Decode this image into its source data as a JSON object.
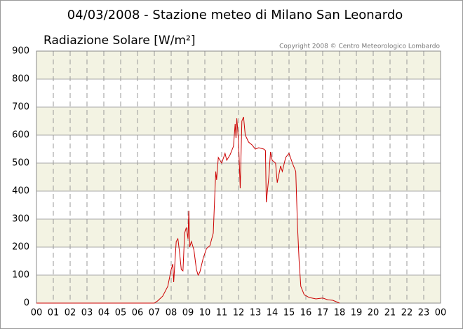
{
  "chart_data": {
    "type": "line",
    "title": "04/03/2008 - Stazione meteo di Milano San Leonardo",
    "subtitle": "Radiazione Solare [W/m²]",
    "copyright": "Copyright 2008 © Centro Meteorologico Lombardo",
    "color": "#cc0000",
    "band_color": "#f3f3e3",
    "grid": true,
    "x": [
      0,
      7,
      7.2,
      7.5,
      7.8,
      8,
      8.1,
      8.15,
      8.3,
      8.4,
      8.5,
      8.6,
      8.7,
      8.8,
      8.9,
      9,
      9.05,
      9.1,
      9.2,
      9.35,
      9.5,
      9.6,
      9.7,
      9.9,
      10.1,
      10.3,
      10.5,
      10.6,
      10.65,
      10.7,
      10.8,
      11,
      11.2,
      11.3,
      11.5,
      11.7,
      11.8,
      11.85,
      11.9,
      12,
      12.1,
      12.2,
      12.3,
      12.4,
      12.6,
      12.8,
      13,
      13.2,
      13.5,
      13.6,
      13.65,
      13.8,
      13.9,
      14,
      14.2,
      14.3,
      14.5,
      14.6,
      14.8,
      15,
      15.2,
      15.4,
      15.5,
      15.6,
      15.7,
      15.9,
      16.2,
      16.6,
      17,
      17.3,
      17.6,
      18
    ],
    "values": [
      0,
      0,
      8,
      25,
      60,
      120,
      140,
      75,
      220,
      230,
      180,
      120,
      115,
      250,
      270,
      230,
      330,
      200,
      220,
      190,
      120,
      100,
      110,
      160,
      195,
      205,
      250,
      400,
      470,
      440,
      520,
      500,
      535,
      510,
      530,
      560,
      640,
      590,
      660,
      580,
      410,
      650,
      665,
      600,
      575,
      565,
      550,
      555,
      550,
      545,
      360,
      450,
      540,
      510,
      500,
      430,
      490,
      470,
      520,
      535,
      500,
      470,
      280,
      150,
      60,
      30,
      20,
      15,
      18,
      12,
      10,
      0
    ],
    "xlim": [
      0,
      24
    ],
    "xticks": [
      {
        "value": 0,
        "label": "00"
      },
      {
        "value": 1,
        "label": "01"
      },
      {
        "value": 2,
        "label": "02"
      },
      {
        "value": 3,
        "label": "03"
      },
      {
        "value": 4,
        "label": "04"
      },
      {
        "value": 5,
        "label": "05"
      },
      {
        "value": 6,
        "label": "06"
      },
      {
        "value": 7,
        "label": "07"
      },
      {
        "value": 8,
        "label": "08"
      },
      {
        "value": 9,
        "label": "09"
      },
      10,
      11,
      12,
      13,
      14,
      15,
      16,
      17,
      18,
      19,
      20,
      21,
      22,
      23,
      {
        "value": 24,
        "label": "00"
      }
    ],
    "ylim": [
      0,
      900
    ],
    "yticks": [
      0,
      100,
      200,
      300,
      400,
      500,
      600,
      700,
      800,
      900
    ]
  }
}
